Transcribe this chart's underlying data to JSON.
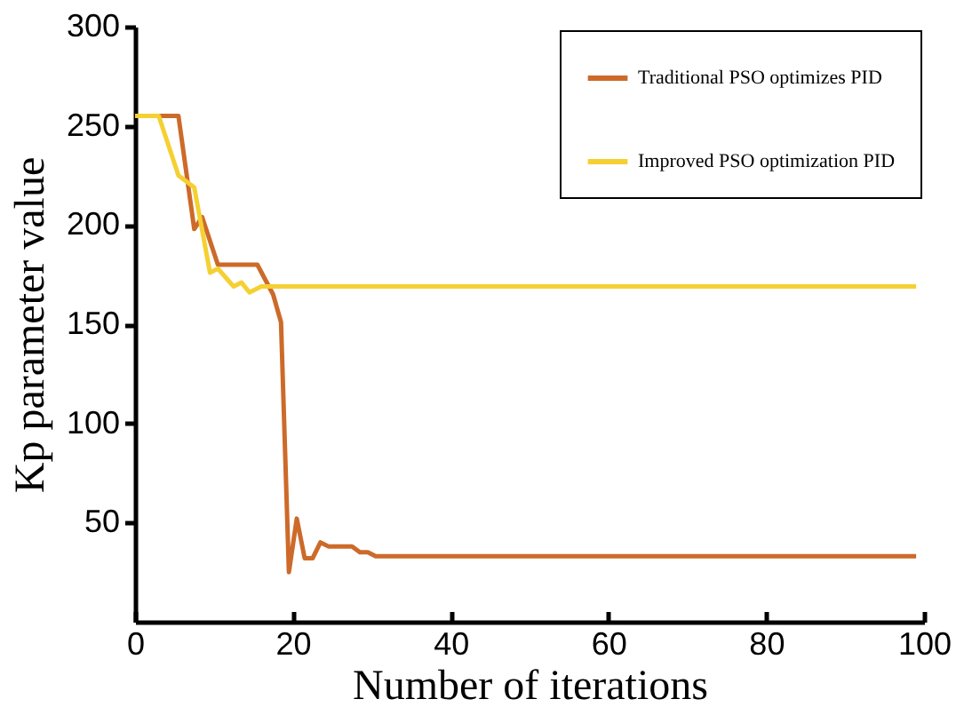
{
  "chart_data": {
    "type": "line",
    "xlabel": "Number of iterations",
    "ylabel": "Kp parameter value",
    "xlim": [
      0,
      100
    ],
    "xticks": [
      0,
      20,
      40,
      60,
      80,
      100
    ],
    "ylim": [
      0,
      300
    ],
    "yticks": [
      50,
      100,
      150,
      200,
      250,
      300
    ],
    "legend": "top right",
    "grid": false,
    "marker": "none",
    "line_style": "solid",
    "series": [
      {
        "name": "Traditional PSO optimizes PID",
        "color": "#cd6a2a",
        "x": [
          0,
          5.5,
          7.5,
          8.5,
          10.5,
          15.5,
          17.5,
          18.5,
          19.5,
          20.5,
          21.5,
          22.5,
          23.5,
          24.5,
          27.5,
          28.5,
          29.5,
          30.5,
          99
        ],
        "values": [
          255,
          255,
          198,
          204,
          180,
          180,
          165,
          151,
          25,
          52,
          32,
          32,
          40,
          38,
          38,
          35,
          35,
          33,
          33
        ]
      },
      {
        "name": "Improved PSO optimization PID",
        "color": "#f5d033",
        "x": [
          0,
          3,
          5.5,
          7.5,
          9.5,
          10.5,
          12.5,
          13.5,
          14.5,
          16,
          99
        ],
        "values": [
          255,
          255,
          225,
          219,
          176,
          178,
          169,
          171,
          166,
          169,
          169
        ]
      }
    ]
  }
}
